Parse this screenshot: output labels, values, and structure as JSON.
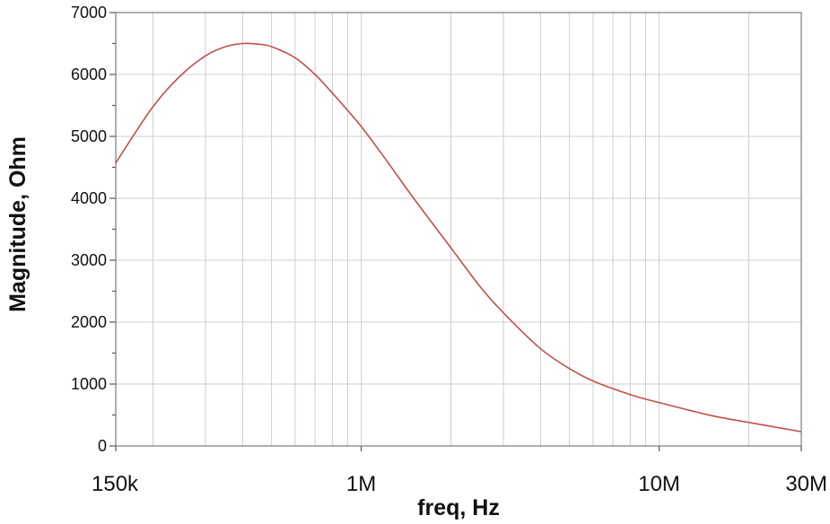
{
  "chart_data": {
    "type": "line",
    "title": "",
    "xlabel": "freq, Hz",
    "ylabel": "Magnitude, Ohm",
    "x_scale": "log",
    "xlim": [
      150000,
      30000000
    ],
    "ylim": [
      0,
      7000
    ],
    "grid": true,
    "legend": "none",
    "x_tick_values": [
      150000,
      1000000,
      10000000,
      30000000
    ],
    "x_tick_labels": [
      "150k",
      "1M",
      "10M",
      "30M"
    ],
    "y_tick_values": [
      0,
      1000,
      2000,
      3000,
      4000,
      5000,
      6000,
      7000
    ],
    "y_tick_labels": [
      "0",
      "1000",
      "2000",
      "3000",
      "4000",
      "5000",
      "6000",
      "7000"
    ],
    "series": [
      {
        "color": "#c0504d",
        "x": [
          150000,
          200000,
          250000,
          300000,
          350000,
          400000,
          450000,
          500000,
          600000,
          700000,
          800000,
          900000,
          1000000,
          1200000,
          1500000,
          2000000,
          2500000,
          3000000,
          4000000,
          5000000,
          6000000,
          8000000,
          10000000,
          15000000,
          20000000,
          30000000
        ],
        "y": [
          4570,
          5480,
          6000,
          6300,
          6450,
          6500,
          6490,
          6450,
          6270,
          6000,
          5700,
          5420,
          5160,
          4650,
          4000,
          3200,
          2580,
          2150,
          1570,
          1250,
          1050,
          830,
          700,
          490,
          380,
          230
        ]
      }
    ]
  }
}
